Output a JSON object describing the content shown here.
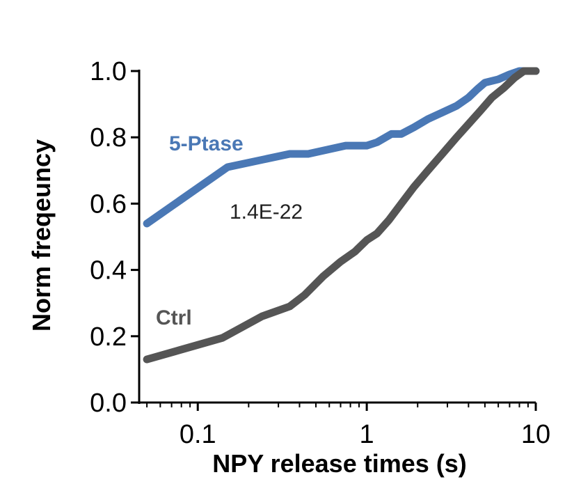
{
  "chart_data": {
    "type": "line",
    "title": "",
    "xlabel": "NPY release times (s)",
    "ylabel": "Norm freqeuncy",
    "x_scale": "log",
    "xlim": [
      0.045,
      10
    ],
    "ylim": [
      0,
      1.0
    ],
    "x_ticks": [
      {
        "value": 0.1,
        "label": "0.1"
      },
      {
        "value": 1,
        "label": "1"
      },
      {
        "value": 10,
        "label": "10"
      }
    ],
    "y_ticks": [
      {
        "value": 0.0,
        "label": "0.0"
      },
      {
        "value": 0.2,
        "label": "0.2"
      },
      {
        "value": 0.4,
        "label": "0.4"
      },
      {
        "value": 0.6,
        "label": "0.6"
      },
      {
        "value": 0.8,
        "label": "0.8"
      },
      {
        "value": 1.0,
        "label": "1.0"
      }
    ],
    "annotation": "1.4E-22",
    "series": [
      {
        "name": "5-Ptase",
        "color": "#4a78b5",
        "x": [
          0.05,
          0.15,
          0.35,
          0.45,
          0.75,
          1.0,
          1.15,
          1.4,
          1.6,
          1.9,
          2.3,
          2.8,
          3.4,
          4.0,
          4.5,
          5.0,
          6.0,
          7.0,
          8.0,
          10.0
        ],
        "y": [
          0.54,
          0.71,
          0.75,
          0.75,
          0.775,
          0.775,
          0.785,
          0.81,
          0.81,
          0.83,
          0.855,
          0.875,
          0.895,
          0.92,
          0.945,
          0.965,
          0.975,
          0.99,
          1.0,
          1.0
        ]
      },
      {
        "name": "Ctrl",
        "color": "#555555",
        "x": [
          0.05,
          0.14,
          0.24,
          0.35,
          0.43,
          0.55,
          0.7,
          0.85,
          1.0,
          1.15,
          1.35,
          1.6,
          1.9,
          2.3,
          2.8,
          3.4,
          4.0,
          4.7,
          5.5,
          6.5,
          7.5,
          8.5,
          10.0
        ],
        "y": [
          0.13,
          0.195,
          0.26,
          0.29,
          0.325,
          0.38,
          0.425,
          0.455,
          0.49,
          0.51,
          0.55,
          0.6,
          0.65,
          0.7,
          0.75,
          0.8,
          0.84,
          0.88,
          0.92,
          0.95,
          0.98,
          1.0,
          1.0
        ]
      }
    ]
  }
}
